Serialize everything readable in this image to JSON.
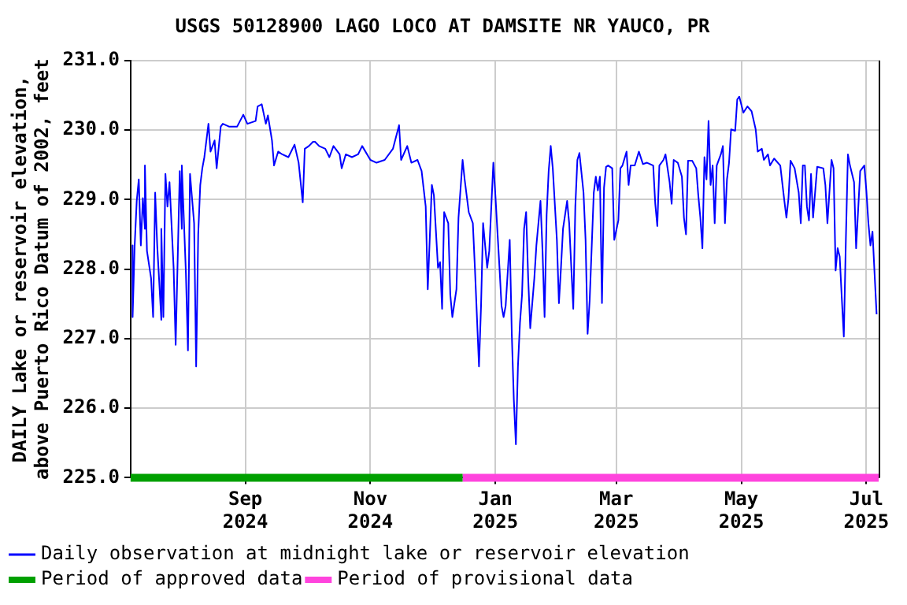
{
  "chart_data": {
    "type": "line",
    "title": "USGS 50128900 LAGO LOCO AT DAMSITE NR YAUCO, PR",
    "ylabel": "DAILY Lake or reservoir elevation,\nabove Puerto Rico Datum of 2002, feet",
    "xlim": [
      "2024-07-07",
      "2025-07-07"
    ],
    "xticks": [
      {
        "value": "2024-09-01",
        "label": "Sep\n2024"
      },
      {
        "value": "2024-11-01",
        "label": "Nov\n2024"
      },
      {
        "value": "2025-01-01",
        "label": "Jan\n2025"
      },
      {
        "value": "2025-03-01",
        "label": "Mar\n2025"
      },
      {
        "value": "2025-05-01",
        "label": "May\n2025"
      },
      {
        "value": "2025-07-01",
        "label": "Jul\n2025"
      }
    ],
    "ylim": [
      225,
      231
    ],
    "yticks": [
      {
        "value": 225,
        "label": "225.0"
      },
      {
        "value": 226,
        "label": "226.0"
      },
      {
        "value": 227,
        "label": "227.0"
      },
      {
        "value": 228,
        "label": "228.0"
      },
      {
        "value": 229,
        "label": "229.0"
      },
      {
        "value": 230,
        "label": "230.0"
      },
      {
        "value": 231,
        "label": "231.0"
      }
    ],
    "grid": true,
    "legend": "bottom",
    "marker": "none",
    "series": [
      {
        "name": "Daily observation at midnight lake or reservoir elevation",
        "color": "#0000ff",
        "x": [
          "2024-07-08",
          "2024-07-08",
          "2024-07-09",
          "2024-07-10",
          "2024-07-11",
          "2024-07-12",
          "2024-07-13",
          "2024-07-14",
          "2024-07-14",
          "2024-07-15",
          "2024-07-17",
          "2024-07-18",
          "2024-07-19",
          "2024-07-20",
          "2024-07-22",
          "2024-07-22",
          "2024-07-23",
          "2024-07-24",
          "2024-07-25",
          "2024-07-26",
          "2024-07-28",
          "2024-07-29",
          "2024-07-31",
          "2024-08-01",
          "2024-08-01",
          "2024-08-03",
          "2024-08-04",
          "2024-08-05",
          "2024-08-07",
          "2024-08-08",
          "2024-08-09",
          "2024-08-10",
          "2024-08-11",
          "2024-08-12",
          "2024-08-14",
          "2024-08-15",
          "2024-08-17",
          "2024-08-18",
          "2024-08-20",
          "2024-08-21",
          "2024-08-24",
          "2024-08-28",
          "2024-08-31",
          "2024-09-02",
          "2024-09-06",
          "2024-09-07",
          "2024-09-09",
          "2024-09-11",
          "2024-09-12",
          "2024-09-14",
          "2024-09-15",
          "2024-09-17",
          "2024-09-19",
          "2024-09-22",
          "2024-09-25",
          "2024-09-27",
          "2024-09-29",
          "2024-09-30",
          "2024-10-02",
          "2024-10-04",
          "2024-10-05",
          "2024-10-07",
          "2024-10-10",
          "2024-10-12",
          "2024-10-14",
          "2024-10-17",
          "2024-10-18",
          "2024-10-20",
          "2024-10-23",
          "2024-10-26",
          "2024-10-28",
          "2024-11-01",
          "2024-11-04",
          "2024-11-08",
          "2024-11-12",
          "2024-11-15",
          "2024-11-16",
          "2024-11-19",
          "2024-11-21",
          "2024-11-24",
          "2024-11-26",
          "2024-11-28",
          "2024-11-29",
          "2024-12-01",
          "2024-12-02",
          "2024-12-04",
          "2024-12-05",
          "2024-12-06",
          "2024-12-07",
          "2024-12-09",
          "2024-12-10",
          "2024-12-11",
          "2024-12-13",
          "2024-12-14",
          "2024-12-16",
          "2024-12-17",
          "2024-12-19",
          "2024-12-21",
          "2024-12-22",
          "2024-12-24",
          "2024-12-25",
          "2024-12-26",
          "2024-12-28",
          "2024-12-29",
          "2024-12-31",
          "2025-01-01",
          "2025-01-03",
          "2025-01-04",
          "2025-01-05",
          "2025-01-06",
          "2025-01-08",
          "2025-01-09",
          "2025-01-10",
          "2025-01-11",
          "2025-01-12",
          "2025-01-13",
          "2025-01-14",
          "2025-01-15",
          "2025-01-16",
          "2025-01-17",
          "2025-01-18",
          "2025-01-20",
          "2025-01-21",
          "2025-01-23",
          "2025-01-24",
          "2025-01-25",
          "2025-01-26",
          "2025-01-27",
          "2025-01-28",
          "2025-01-29",
          "2025-01-31",
          "2025-02-01",
          "2025-02-02",
          "2025-02-03",
          "2025-02-05",
          "2025-02-06",
          "2025-02-08",
          "2025-02-09",
          "2025-02-10",
          "2025-02-11",
          "2025-02-13",
          "2025-02-14",
          "2025-02-15",
          "2025-02-16",
          "2025-02-18",
          "2025-02-19",
          "2025-02-20",
          "2025-02-21",
          "2025-02-22",
          "2025-02-23",
          "2025-02-24",
          "2025-02-25",
          "2025-02-27",
          "2025-02-28",
          "2025-03-02",
          "2025-03-03",
          "2025-03-04",
          "2025-03-06",
          "2025-03-07",
          "2025-03-08",
          "2025-03-10",
          "2025-03-12",
          "2025-03-14",
          "2025-03-16",
          "2025-03-19",
          "2025-03-20",
          "2025-03-21",
          "2025-03-22",
          "2025-03-24",
          "2025-03-25",
          "2025-03-27",
          "2025-03-28",
          "2025-03-29",
          "2025-03-31",
          "2025-04-02",
          "2025-04-03",
          "2025-04-04",
          "2025-04-05",
          "2025-04-07",
          "2025-04-09",
          "2025-04-10",
          "2025-04-11",
          "2025-04-12",
          "2025-04-13",
          "2025-04-14",
          "2025-04-15",
          "2025-04-16",
          "2025-04-17",
          "2025-04-18",
          "2025-04-19",
          "2025-04-21",
          "2025-04-22",
          "2025-04-23",
          "2025-04-24",
          "2025-04-25",
          "2025-04-26",
          "2025-04-28",
          "2025-04-29",
          "2025-04-30",
          "2025-05-02",
          "2025-05-04",
          "2025-05-06",
          "2025-05-08",
          "2025-05-09",
          "2025-05-11",
          "2025-05-12",
          "2025-05-14",
          "2025-05-15",
          "2025-05-17",
          "2025-05-20",
          "2025-05-22",
          "2025-05-23",
          "2025-05-24",
          "2025-05-25",
          "2025-05-27",
          "2025-05-29",
          "2025-05-30",
          "2025-05-31",
          "2025-06-01",
          "2025-06-02",
          "2025-06-03",
          "2025-06-04",
          "2025-06-05",
          "2025-06-07",
          "2025-06-10",
          "2025-06-11",
          "2025-06-12",
          "2025-06-14",
          "2025-06-15",
          "2025-06-16",
          "2025-06-17",
          "2025-06-18",
          "2025-06-19",
          "2025-06-20",
          "2025-06-21",
          "2025-06-22",
          "2025-06-23",
          "2025-06-25",
          "2025-06-26",
          "2025-06-28",
          "2025-06-30",
          "2025-07-01",
          "2025-07-02",
          "2025-07-03",
          "2025-07-04",
          "2025-07-05",
          "2025-07-06"
        ],
        "values": [
          228.34,
          227.31,
          228.34,
          228.98,
          229.29,
          228.34,
          229.02,
          228.58,
          229.49,
          228.26,
          227.87,
          227.31,
          229.1,
          228.34,
          227.27,
          228.58,
          227.31,
          229.37,
          228.9,
          229.25,
          228.02,
          226.91,
          229.41,
          228.58,
          229.49,
          227.94,
          226.83,
          229.37,
          228.66,
          226.6,
          228.5,
          229.21,
          229.45,
          229.61,
          230.09,
          229.69,
          229.85,
          229.45,
          230.05,
          230.09,
          230.05,
          230.05,
          230.22,
          230.09,
          230.13,
          230.34,
          230.37,
          230.09,
          230.21,
          229.85,
          229.49,
          229.69,
          229.65,
          229.61,
          229.79,
          229.53,
          228.96,
          229.73,
          229.77,
          229.83,
          229.83,
          229.77,
          229.73,
          229.61,
          229.77,
          229.65,
          229.45,
          229.65,
          229.61,
          229.65,
          229.77,
          229.57,
          229.53,
          229.57,
          229.73,
          230.07,
          229.57,
          229.77,
          229.53,
          229.57,
          229.41,
          228.9,
          227.71,
          229.21,
          229.06,
          228.02,
          228.1,
          227.43,
          228.82,
          228.66,
          227.63,
          227.31,
          227.71,
          228.74,
          229.57,
          229.29,
          228.82,
          228.66,
          228.02,
          226.6,
          227.47,
          228.66,
          228.02,
          228.26,
          229.53,
          229.06,
          228.02,
          227.47,
          227.31,
          227.47,
          228.42,
          227.07,
          226.12,
          225.48,
          226.6,
          227.23,
          227.63,
          228.58,
          228.82,
          227.87,
          227.15,
          227.87,
          228.34,
          228.98,
          228.26,
          227.31,
          228.78,
          229.41,
          229.77,
          229.45,
          228.42,
          227.51,
          228.02,
          228.58,
          228.98,
          228.66,
          227.43,
          228.9,
          229.57,
          229.67,
          229.1,
          228.42,
          227.07,
          227.55,
          229.1,
          229.33,
          229.13,
          229.33,
          227.51,
          229.17,
          229.47,
          229.49,
          229.45,
          228.42,
          228.7,
          229.45,
          229.49,
          229.69,
          229.21,
          229.49,
          229.49,
          229.69,
          229.51,
          229.53,
          229.49,
          228.94,
          228.62,
          229.49,
          229.57,
          229.65,
          229.25,
          228.94,
          229.57,
          229.53,
          229.33,
          228.74,
          228.5,
          229.56,
          229.56,
          229.45,
          229.06,
          228.74,
          228.3,
          229.61,
          229.29,
          230.13,
          229.21,
          229.49,
          228.66,
          229.49,
          229.65,
          229.77,
          228.66,
          229.29,
          229.53,
          230.01,
          229.99,
          230.44,
          230.48,
          230.25,
          230.34,
          230.27,
          230.01,
          229.69,
          229.73,
          229.57,
          229.65,
          229.49,
          229.59,
          229.49,
          228.98,
          228.74,
          229.02,
          229.56,
          229.45,
          229.1,
          228.66,
          229.49,
          229.49,
          228.9,
          228.7,
          229.37,
          228.74,
          229.47,
          229.45,
          229.21,
          228.66,
          229.57,
          229.45,
          227.98,
          228.3,
          228.18,
          227.59,
          227.03,
          228.42,
          229.65,
          229.49,
          229.25,
          228.3,
          229.41,
          229.49,
          229.13,
          228.66,
          228.34,
          228.54,
          227.94,
          227.35
        ]
      },
      {
        "name": "Period of approved data",
        "color": "#00a000",
        "x": [
          "2024-07-07",
          "2024-12-16"
        ],
        "values": [
          225,
          225
        ]
      },
      {
        "name": "Period of provisional data",
        "color": "#ff44dd",
        "x": [
          "2024-12-16",
          "2025-07-07"
        ],
        "values": [
          225,
          225
        ]
      }
    ]
  }
}
